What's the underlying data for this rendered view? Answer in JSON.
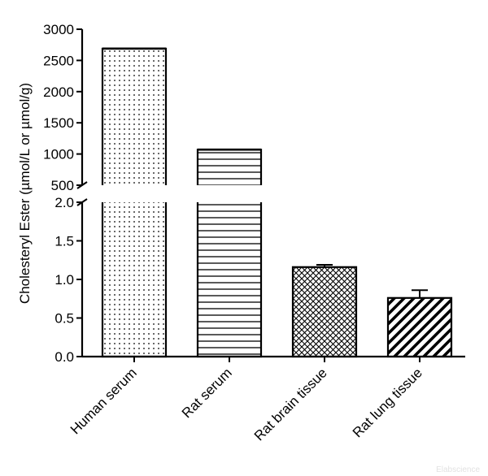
{
  "chart_data": {
    "type": "bar",
    "ylabel": "Cholesteryl Ester (µmol/L or µmol/g)",
    "categories": [
      "Human serum",
      "Rat serum",
      "Rat brain tissue",
      "Rat lung tissue"
    ],
    "values": [
      2690,
      1070,
      1.16,
      0.76
    ],
    "error": [
      null,
      null,
      0.03,
      0.1
    ],
    "patterns": [
      "dots",
      "horizontal-lines",
      "crosshatch",
      "diagonal-stripes"
    ],
    "axis_segments": [
      {
        "name": "upper",
        "ylim": [
          500,
          3000
        ],
        "ticks": [
          "500",
          "1000",
          "1500",
          "2000",
          "2500",
          "3000"
        ]
      },
      {
        "name": "lower",
        "ylim": [
          0,
          2.0
        ],
        "ticks": [
          "0.0",
          "0.5",
          "1.0",
          "1.5",
          "2.0"
        ]
      }
    ],
    "broken_axis": true,
    "grid": false
  },
  "watermark": "Elabscience"
}
